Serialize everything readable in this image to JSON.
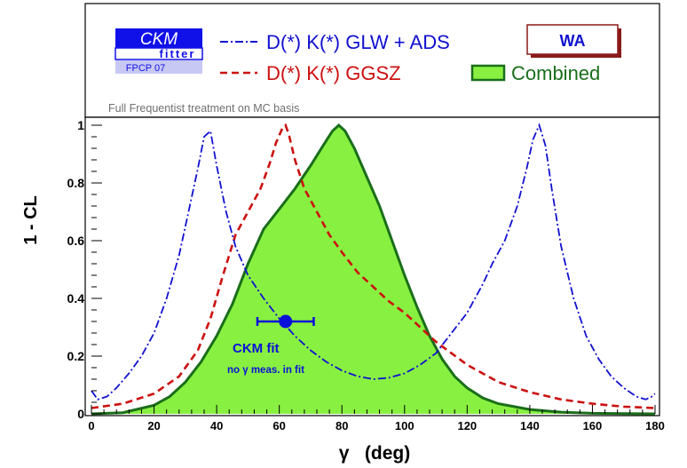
{
  "legend": {
    "logo_top": "CKM",
    "logo_bottom": "fitter",
    "logo_tag": "FPCP 07",
    "badge": "WA",
    "note": "Full Frequentist treatment on MC basis"
  },
  "colors": {
    "glw_ads": "#1010d0",
    "ggsz": "#cc1010",
    "combined_fill": "#88f040",
    "combined_line": "#1a6e1a",
    "fit_marker": "#0a10d8",
    "logo": "#1010e8",
    "badge": "#8a1a1a"
  },
  "chart_data": {
    "type": "line",
    "xlabel": "γ   (deg)",
    "ylabel": "1 - CL",
    "xlim": [
      0,
      180
    ],
    "ylim": [
      0,
      1
    ],
    "x_ticks": [
      "0",
      "20",
      "40",
      "60",
      "80",
      "100",
      "120",
      "140",
      "160",
      "180"
    ],
    "y_ticks": [
      "0",
      "0.2",
      "0.4",
      "0.6",
      "0.8",
      "1"
    ],
    "grid": false,
    "legend_position": "top",
    "series": [
      {
        "name": "D(*) K(*) GLW + ADS",
        "style": "dash-dot",
        "x": [
          0,
          2,
          5,
          8,
          12,
          16,
          20,
          24,
          28,
          31,
          34,
          36,
          38,
          40,
          43,
          46,
          50,
          55,
          60,
          65,
          70,
          75,
          80,
          85,
          90,
          95,
          100,
          105,
          110,
          115,
          120,
          125,
          128,
          132,
          136,
          139,
          141,
          143,
          145,
          147,
          150,
          154,
          158,
          162,
          166,
          170,
          174,
          177,
          179,
          180
        ],
        "y": [
          0.08,
          0.05,
          0.06,
          0.09,
          0.14,
          0.2,
          0.28,
          0.4,
          0.55,
          0.7,
          0.85,
          0.96,
          0.98,
          0.86,
          0.7,
          0.58,
          0.48,
          0.4,
          0.33,
          0.27,
          0.22,
          0.18,
          0.15,
          0.13,
          0.12,
          0.125,
          0.14,
          0.17,
          0.21,
          0.28,
          0.35,
          0.45,
          0.52,
          0.6,
          0.72,
          0.85,
          0.95,
          1.0,
          0.93,
          0.78,
          0.58,
          0.4,
          0.27,
          0.19,
          0.13,
          0.09,
          0.06,
          0.05,
          0.06,
          0.07
        ]
      },
      {
        "name": "D(*) K(*) GGSZ",
        "style": "dashed",
        "x": [
          0,
          10,
          20,
          28,
          34,
          38,
          42,
          46,
          50,
          54,
          57,
          59,
          61,
          62,
          63,
          65,
          68,
          72,
          76,
          80,
          85,
          90,
          95,
          100,
          105,
          110,
          115,
          120,
          130,
          140,
          150,
          160,
          170,
          180
        ],
        "y": [
          0.02,
          0.035,
          0.07,
          0.13,
          0.22,
          0.33,
          0.48,
          0.62,
          0.7,
          0.78,
          0.87,
          0.94,
          0.99,
          1.0,
          0.97,
          0.88,
          0.78,
          0.7,
          0.62,
          0.56,
          0.49,
          0.44,
          0.39,
          0.35,
          0.3,
          0.25,
          0.21,
          0.17,
          0.11,
          0.075,
          0.05,
          0.035,
          0.025,
          0.02
        ]
      },
      {
        "name": "Combined",
        "style": "filled",
        "x": [
          0,
          10,
          20,
          25,
          30,
          35,
          40,
          45,
          50,
          55,
          60,
          65,
          70,
          74,
          77,
          79,
          81,
          84,
          88,
          92,
          96,
          100,
          104,
          108,
          112,
          116,
          120,
          125,
          130,
          140,
          150,
          160,
          170,
          180
        ],
        "y": [
          0.0,
          0.004,
          0.03,
          0.06,
          0.11,
          0.18,
          0.27,
          0.38,
          0.52,
          0.64,
          0.71,
          0.78,
          0.86,
          0.93,
          0.98,
          1.0,
          0.98,
          0.92,
          0.82,
          0.72,
          0.6,
          0.48,
          0.37,
          0.27,
          0.19,
          0.13,
          0.09,
          0.055,
          0.035,
          0.015,
          0.006,
          0.002,
          0.0005,
          0.0
        ]
      }
    ],
    "annotation": {
      "label": "CKM fit",
      "sublabel": "no γ meas. in fit",
      "point": {
        "x": 62,
        "y": 0.32,
        "xerr": [
          53,
          71
        ]
      }
    }
  }
}
